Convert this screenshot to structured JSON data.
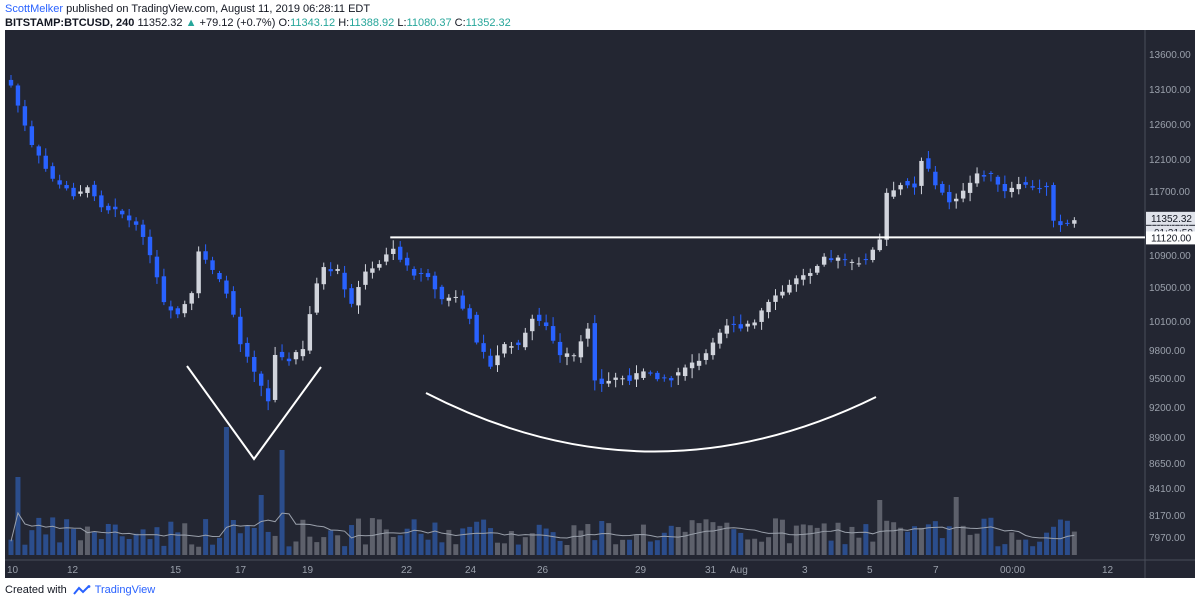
{
  "header": {
    "author": "ScottMelker",
    "published_text": "published on TradingView.com, August 11, 2019 06:28:11 EDT",
    "symbol": "BITSTAMP:BTCUSD, 240",
    "last": "11352.32",
    "change_arrow": "▲",
    "change": "+79.12 (+0.7%)",
    "o_label": "O:",
    "o_value": "11343.12",
    "h_label": "H:",
    "h_value": "11388.92",
    "l_label": "L:",
    "l_value": "11080.37",
    "c_label": "C:",
    "c_value": "11352.32"
  },
  "footer": {
    "created_with": "Created with",
    "brand": "TradingView",
    "logo_icon": "tradingview-logo-icon"
  },
  "colors": {
    "background": "#232632",
    "bull": "#d1d4dc",
    "bear": "#2962ff",
    "annotation": "#ffffff",
    "up_text": "#26a69a"
  },
  "chart_data": {
    "type": "candlestick",
    "symbol": "BITSTAMP:BTCUSD",
    "interval": "240",
    "y_ticks": [
      "13600.00",
      "13100.00",
      "12600.00",
      "12100.00",
      "11700.00",
      "11300.00",
      "10900.00",
      "10500.00",
      "10100.00",
      "9800.00",
      "9500.00",
      "9200.00",
      "8900.00",
      "8650.00",
      "8410.00",
      "8170.00",
      "7970.00"
    ],
    "ylim": [
      7800,
      13900
    ],
    "x_ticks": [
      "10",
      "12",
      "15",
      "17",
      "19",
      "22",
      "24",
      "26",
      "29",
      "31",
      "Aug",
      "3",
      "5",
      "7",
      "00:00",
      "12"
    ],
    "price_labels": {
      "last": "11352.32",
      "countdown": "01:31:50",
      "level": "11120.00"
    },
    "level": 11120,
    "annotations": [
      "v-bottom",
      "rounded-bottom",
      "resistance-line-11120"
    ],
    "close_path": [
      [
        0,
        13150
      ],
      [
        3,
        12300
      ],
      [
        6,
        11850
      ],
      [
        9,
        11650
      ],
      [
        11,
        11750
      ],
      [
        13,
        11500
      ],
      [
        15,
        11450
      ],
      [
        17,
        11350
      ],
      [
        19,
        11150
      ],
      [
        21,
        10650
      ],
      [
        22,
        10300
      ],
      [
        24,
        10200
      ],
      [
        26,
        10450
      ],
      [
        27,
        10950
      ],
      [
        29,
        10700
      ],
      [
        31,
        10450
      ],
      [
        33,
        9850
      ],
      [
        35,
        9550
      ],
      [
        37,
        9250
      ],
      [
        38,
        9750
      ],
      [
        40,
        9700
      ],
      [
        42,
        9800
      ],
      [
        44,
        10550
      ],
      [
        45,
        10750
      ],
      [
        47,
        10700
      ],
      [
        49,
        10300
      ],
      [
        51,
        10700
      ],
      [
        53,
        10800
      ],
      [
        55,
        11000
      ],
      [
        56,
        10850
      ],
      [
        58,
        10650
      ],
      [
        60,
        10650
      ],
      [
        62,
        10350
      ],
      [
        64,
        10400
      ],
      [
        66,
        10150
      ],
      [
        67,
        9850
      ],
      [
        69,
        9650
      ],
      [
        71,
        9850
      ],
      [
        73,
        9850
      ],
      [
        75,
        10150
      ],
      [
        77,
        10050
      ],
      [
        79,
        9750
      ],
      [
        81,
        9750
      ],
      [
        83,
        10050
      ],
      [
        84,
        9500
      ],
      [
        85,
        9450
      ],
      [
        87,
        9500
      ],
      [
        89,
        9500
      ],
      [
        91,
        9550
      ],
      [
        93,
        9500
      ],
      [
        95,
        9500
      ],
      [
        97,
        9600
      ],
      [
        99,
        9700
      ],
      [
        101,
        9850
      ],
      [
        103,
        10050
      ],
      [
        105,
        10050
      ],
      [
        107,
        10100
      ],
      [
        109,
        10350
      ],
      [
        111,
        10450
      ],
      [
        113,
        10600
      ],
      [
        115,
        10650
      ],
      [
        117,
        10850
      ],
      [
        119,
        10850
      ],
      [
        121,
        10800
      ],
      [
        123,
        10850
      ],
      [
        125,
        11100
      ],
      [
        126,
        11650
      ],
      [
        128,
        11800
      ],
      [
        130,
        11750
      ],
      [
        131,
        12100
      ],
      [
        133,
        11800
      ],
      [
        135,
        11550
      ],
      [
        137,
        11700
      ],
      [
        139,
        11900
      ],
      [
        141,
        11900
      ],
      [
        143,
        11700
      ],
      [
        145,
        11800
      ],
      [
        147,
        11750
      ],
      [
        149,
        11750
      ],
      [
        150,
        11300
      ],
      [
        152,
        11300
      ],
      [
        153,
        11352
      ]
    ],
    "volume_scale": [
      0,
      100
    ]
  }
}
